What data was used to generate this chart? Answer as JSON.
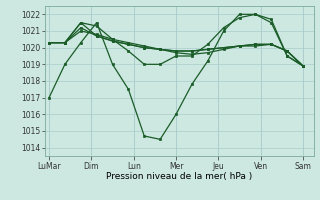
{
  "background_color": "#cce8e0",
  "grid_color": "#aacccc",
  "line_color": "#1a5c28",
  "xlabel": "Pression niveau de la mer( hPa )",
  "ylim": [
    1013.5,
    1022.5
  ],
  "yticks": [
    1014,
    1015,
    1016,
    1017,
    1018,
    1019,
    1020,
    1021,
    1022
  ],
  "xtick_labels": [
    "LuMar",
    "Dim",
    "Lun",
    "Mer",
    "Jeu",
    "Ven",
    "Sam"
  ],
  "xtick_positions": [
    0,
    2,
    4,
    6,
    8,
    10,
    12
  ],
  "lines": [
    [
      1017.0,
      1019.0,
      1020.3,
      1021.5,
      1019.0,
      1017.5,
      1014.7,
      1014.5,
      1016.0,
      1017.8,
      1019.2,
      1021.0,
      1022.0,
      1022.0,
      1021.7,
      1019.5,
      1018.9
    ],
    [
      1020.3,
      1020.3,
      1021.5,
      1021.3,
      1020.5,
      1019.8,
      1019.0,
      1019.0,
      1019.5,
      1019.5,
      1020.2,
      1021.2,
      1021.8,
      1022.0,
      1021.5,
      1019.5,
      1018.9
    ],
    [
      1020.3,
      1020.3,
      1021.0,
      1020.8,
      1020.5,
      1020.3,
      1020.1,
      1019.9,
      1019.7,
      1019.6,
      1019.7,
      1019.9,
      1020.1,
      1020.2,
      1020.2,
      1019.8,
      1018.9
    ],
    [
      1020.3,
      1020.3,
      1021.5,
      1020.7,
      1020.4,
      1020.2,
      1020.0,
      1019.9,
      1019.8,
      1019.8,
      1019.9,
      1020.0,
      1020.1,
      1020.2,
      1020.2,
      1019.8,
      1018.9
    ],
    [
      1020.3,
      1020.3,
      1021.2,
      1020.7,
      1020.4,
      1020.2,
      1020.0,
      1019.9,
      1019.8,
      1019.8,
      1019.9,
      1020.0,
      1020.1,
      1020.1,
      1020.2,
      1019.8,
      1018.9
    ]
  ]
}
